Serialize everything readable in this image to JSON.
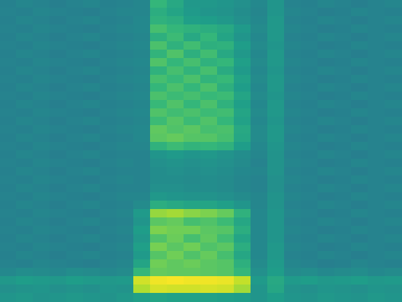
{
  "chart_data": {
    "type": "heatmap",
    "tick_labels": false,
    "grid": false,
    "clim": [
      0,
      10
    ],
    "cells": [
      [
        4.4,
        4.6,
        4.5,
        4.3,
        4.5,
        4.6,
        4.4,
        4.5,
        4.6,
        6.6,
        6.0,
        5.3,
        5.3,
        5.2,
        5.0,
        4.7,
        5.2,
        4.5,
        4.4,
        4.6,
        4.5,
        4.3,
        4.5,
        4.6
      ],
      [
        4.5,
        4.4,
        4.6,
        4.5,
        4.4,
        4.3,
        4.5,
        4.6,
        4.6,
        6.2,
        5.8,
        5.4,
        5.2,
        5.1,
        4.9,
        4.6,
        5.2,
        4.6,
        4.5,
        4.3,
        4.4,
        4.6,
        4.5,
        4.4
      ],
      [
        4.4,
        4.6,
        4.5,
        4.3,
        4.5,
        4.6,
        4.4,
        4.5,
        4.7,
        6.4,
        6.2,
        5.6,
        5.5,
        5.3,
        5.0,
        4.7,
        5.3,
        4.5,
        4.4,
        4.6,
        4.5,
        4.3,
        4.5,
        4.6
      ],
      [
        4.5,
        4.4,
        4.6,
        4.5,
        4.4,
        4.3,
        4.5,
        4.6,
        4.7,
        7.0,
        6.6,
        6.4,
        6.2,
        6.0,
        5.4,
        4.8,
        5.3,
        4.6,
        4.5,
        4.3,
        4.4,
        4.6,
        4.5,
        4.4
      ],
      [
        4.4,
        4.6,
        4.5,
        4.3,
        4.5,
        4.6,
        4.4,
        4.5,
        4.6,
        6.3,
        6.8,
        6.0,
        6.6,
        5.8,
        5.2,
        4.7,
        5.3,
        4.5,
        4.4,
        4.6,
        4.5,
        4.3,
        4.5,
        4.6
      ],
      [
        4.5,
        4.4,
        4.6,
        4.5,
        4.4,
        4.3,
        4.5,
        4.6,
        4.7,
        7.1,
        6.4,
        6.9,
        6.3,
        6.4,
        5.5,
        4.8,
        5.2,
        4.6,
        4.5,
        4.3,
        4.4,
        4.6,
        4.5,
        4.4
      ],
      [
        4.4,
        4.6,
        4.5,
        4.3,
        4.5,
        4.6,
        4.4,
        4.5,
        4.6,
        6.5,
        7.2,
        6.3,
        6.9,
        6.0,
        5.3,
        4.7,
        5.3,
        4.5,
        4.4,
        4.6,
        4.5,
        4.3,
        4.5,
        4.6
      ],
      [
        4.5,
        4.4,
        4.6,
        4.5,
        4.4,
        4.3,
        4.5,
        4.6,
        4.7,
        7.2,
        6.6,
        7.0,
        6.4,
        6.6,
        5.6,
        4.8,
        5.3,
        4.6,
        4.5,
        4.3,
        4.4,
        4.6,
        4.5,
        4.4
      ],
      [
        4.4,
        4.6,
        4.5,
        4.3,
        4.5,
        4.6,
        4.4,
        4.5,
        4.6,
        6.4,
        7.0,
        6.5,
        7.0,
        6.1,
        5.4,
        4.7,
        5.2,
        4.5,
        4.4,
        4.6,
        4.5,
        4.3,
        4.5,
        4.6
      ],
      [
        4.5,
        4.4,
        4.6,
        4.5,
        4.4,
        4.3,
        4.5,
        4.6,
        4.7,
        7.0,
        6.7,
        7.1,
        6.5,
        6.7,
        5.7,
        4.8,
        5.3,
        4.6,
        4.5,
        4.3,
        4.4,
        4.6,
        4.5,
        4.4
      ],
      [
        4.4,
        4.6,
        4.5,
        4.3,
        4.5,
        4.6,
        4.4,
        4.5,
        4.6,
        6.6,
        7.1,
        6.6,
        7.1,
        6.3,
        5.5,
        4.7,
        5.3,
        4.5,
        4.4,
        4.6,
        4.5,
        4.3,
        4.5,
        4.6
      ],
      [
        4.5,
        4.4,
        4.6,
        4.5,
        4.4,
        4.3,
        4.5,
        4.6,
        4.7,
        7.1,
        6.8,
        7.0,
        6.7,
        6.8,
        5.8,
        4.8,
        5.2,
        4.6,
        4.5,
        4.3,
        4.4,
        4.6,
        4.5,
        4.4
      ],
      [
        4.4,
        4.6,
        4.5,
        4.3,
        4.5,
        4.6,
        4.4,
        4.5,
        4.6,
        6.7,
        7.2,
        6.6,
        7.1,
        6.4,
        5.6,
        4.7,
        5.3,
        4.5,
        4.4,
        4.6,
        4.5,
        4.3,
        4.5,
        4.6
      ],
      [
        4.5,
        4.4,
        4.6,
        4.5,
        4.4,
        4.3,
        4.5,
        4.6,
        4.7,
        7.2,
        6.9,
        7.1,
        6.8,
        6.9,
        5.8,
        4.8,
        5.3,
        4.6,
        4.5,
        4.3,
        4.4,
        4.6,
        4.5,
        4.4
      ],
      [
        4.4,
        4.6,
        4.5,
        4.3,
        4.5,
        4.6,
        4.4,
        4.5,
        4.6,
        6.8,
        7.3,
        6.8,
        7.2,
        6.6,
        5.7,
        4.7,
        5.2,
        4.5,
        4.4,
        4.6,
        4.5,
        4.3,
        4.5,
        4.6
      ],
      [
        4.5,
        4.4,
        4.6,
        4.5,
        4.4,
        4.3,
        4.5,
        4.6,
        4.7,
        7.5,
        7.2,
        7.4,
        7.0,
        7.1,
        6.0,
        4.8,
        5.3,
        4.6,
        4.5,
        4.3,
        4.4,
        4.6,
        4.5,
        4.4
      ],
      [
        4.4,
        4.6,
        4.5,
        4.3,
        4.5,
        4.6,
        4.4,
        4.5,
        4.7,
        7.4,
        7.6,
        7.3,
        7.3,
        7.0,
        5.9,
        4.8,
        5.3,
        4.5,
        4.4,
        4.6,
        4.5,
        4.3,
        4.5,
        4.6
      ],
      [
        4.5,
        4.4,
        4.6,
        4.5,
        4.4,
        4.3,
        4.5,
        4.6,
        4.6,
        6.4,
        6.8,
        6.5,
        6.6,
        6.4,
        5.5,
        4.7,
        5.2,
        4.6,
        4.5,
        4.3,
        4.4,
        4.6,
        4.5,
        4.4
      ],
      [
        4.4,
        4.6,
        4.5,
        4.3,
        4.5,
        4.6,
        4.4,
        4.5,
        4.5,
        5.2,
        5.4,
        5.2,
        5.3,
        5.1,
        4.9,
        4.6,
        5.1,
        4.5,
        4.4,
        4.6,
        4.5,
        4.3,
        4.5,
        4.6
      ],
      [
        4.5,
        4.4,
        4.6,
        4.5,
        4.4,
        4.3,
        4.5,
        4.6,
        4.5,
        5.0,
        5.1,
        5.0,
        5.1,
        5.0,
        4.8,
        4.5,
        5.1,
        4.6,
        4.5,
        4.3,
        4.4,
        4.6,
        4.5,
        4.4
      ],
      [
        4.4,
        4.6,
        4.5,
        4.3,
        4.5,
        4.6,
        4.4,
        4.5,
        4.5,
        4.9,
        5.0,
        4.9,
        5.0,
        4.9,
        4.7,
        4.6,
        5.1,
        4.5,
        4.4,
        4.6,
        4.5,
        4.3,
        4.5,
        4.6
      ],
      [
        4.5,
        4.4,
        4.6,
        4.5,
        4.4,
        4.3,
        4.5,
        4.6,
        4.5,
        4.9,
        4.9,
        4.8,
        4.9,
        4.8,
        4.6,
        4.5,
        5.0,
        4.6,
        4.5,
        4.3,
        4.4,
        4.6,
        4.5,
        4.4
      ],
      [
        4.4,
        4.6,
        4.5,
        4.3,
        4.5,
        4.6,
        4.4,
        4.5,
        4.5,
        5.0,
        5.0,
        4.9,
        4.9,
        4.8,
        4.6,
        4.5,
        5.0,
        4.5,
        4.4,
        4.6,
        4.5,
        4.3,
        4.5,
        4.6
      ],
      [
        4.5,
        4.4,
        4.6,
        4.5,
        4.4,
        4.3,
        4.5,
        4.6,
        4.6,
        5.3,
        5.2,
        5.1,
        5.1,
        5.0,
        4.8,
        4.6,
        5.1,
        4.6,
        4.5,
        4.3,
        4.4,
        4.6,
        4.5,
        4.4
      ],
      [
        4.4,
        4.6,
        4.5,
        4.3,
        4.5,
        4.6,
        4.4,
        4.5,
        4.8,
        6.2,
        6.0,
        5.8,
        5.8,
        5.6,
        5.2,
        4.6,
        5.1,
        4.5,
        4.4,
        4.6,
        4.5,
        4.3,
        4.5,
        4.6
      ],
      [
        4.5,
        4.4,
        4.6,
        4.5,
        4.4,
        4.3,
        4.5,
        4.6,
        5.4,
        8.4,
        8.6,
        8.2,
        8.0,
        7.6,
        6.4,
        4.7,
        5.2,
        4.6,
        4.5,
        4.3,
        4.4,
        4.6,
        4.5,
        4.4
      ],
      [
        4.4,
        4.6,
        4.5,
        4.3,
        4.5,
        4.6,
        4.4,
        4.5,
        5.2,
        7.4,
        7.6,
        7.0,
        7.2,
        6.8,
        5.9,
        4.7,
        5.2,
        4.5,
        4.4,
        4.6,
        4.5,
        4.3,
        4.5,
        4.6
      ],
      [
        4.5,
        4.4,
        4.6,
        4.5,
        4.4,
        4.3,
        4.5,
        4.6,
        5.5,
        8.0,
        7.8,
        7.8,
        7.4,
        7.3,
        6.2,
        4.7,
        5.2,
        4.6,
        4.5,
        4.3,
        4.4,
        4.6,
        4.5,
        4.4
      ],
      [
        4.4,
        4.6,
        4.5,
        4.3,
        4.5,
        4.6,
        4.4,
        4.5,
        5.3,
        7.2,
        7.7,
        7.0,
        7.5,
        6.9,
        5.8,
        4.7,
        5.2,
        4.5,
        4.4,
        4.6,
        4.5,
        4.3,
        4.5,
        4.6
      ],
      [
        4.5,
        4.4,
        4.6,
        4.5,
        4.4,
        4.3,
        4.5,
        4.6,
        5.6,
        7.9,
        7.4,
        7.8,
        7.2,
        7.4,
        6.2,
        4.7,
        5.3,
        4.6,
        4.5,
        4.3,
        4.4,
        4.6,
        4.5,
        4.4
      ],
      [
        4.4,
        4.6,
        4.5,
        4.3,
        4.5,
        4.6,
        4.4,
        4.5,
        5.4,
        7.3,
        7.8,
        7.2,
        7.6,
        7.0,
        5.9,
        4.7,
        5.3,
        4.5,
        4.4,
        4.6,
        4.5,
        4.3,
        4.5,
        4.6
      ],
      [
        4.5,
        4.4,
        4.6,
        4.5,
        4.4,
        4.3,
        4.5,
        4.6,
        5.8,
        7.8,
        7.5,
        7.7,
        7.4,
        7.3,
        6.3,
        4.8,
        5.4,
        4.6,
        4.5,
        4.3,
        4.4,
        4.6,
        4.5,
        4.4
      ],
      [
        4.7,
        4.9,
        4.8,
        4.7,
        4.9,
        4.8,
        4.7,
        4.8,
        6.6,
        7.6,
        7.5,
        7.5,
        7.4,
        7.3,
        6.6,
        5.0,
        5.5,
        4.8,
        4.9,
        4.7,
        4.8,
        4.9,
        4.7,
        4.8
      ],
      [
        5.3,
        5.5,
        5.4,
        5.3,
        5.5,
        5.4,
        5.3,
        5.4,
        9.3,
        9.8,
        9.9,
        9.8,
        9.8,
        9.7,
        9.1,
        5.4,
        6.0,
        5.4,
        5.5,
        5.3,
        5.4,
        5.5,
        5.3,
        5.4
      ],
      [
        5.0,
        5.1,
        5.2,
        5.0,
        5.1,
        5.0,
        5.2,
        5.1,
        8.8,
        9.4,
        9.3,
        9.3,
        9.4,
        9.3,
        8.6,
        5.2,
        5.9,
        5.1,
        5.0,
        5.2,
        5.1,
        5.0,
        5.2,
        5.1
      ],
      [
        5.2,
        5.3,
        5.1,
        5.2,
        5.3,
        5.2,
        5.1,
        5.3,
        5.6,
        5.8,
        5.7,
        5.7,
        5.7,
        5.6,
        5.5,
        5.2,
        5.5,
        5.2,
        5.1,
        5.3,
        5.2,
        5.1,
        5.3,
        5.2
      ]
    ]
  }
}
